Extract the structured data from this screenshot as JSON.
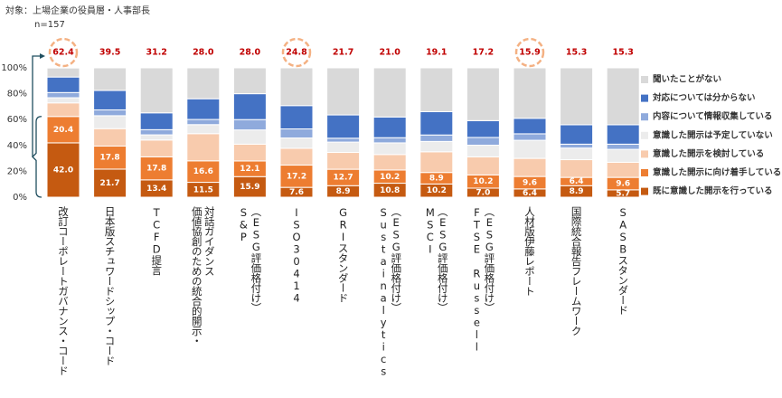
{
  "chart_data": {
    "type": "stacked_bar_percent",
    "subtitle": "対象：上場企業の役員層・人事部長",
    "note": "n=157",
    "categories": [
      [
        "改訂コーポレートガバナンス・コード"
      ],
      [
        "日本版スチュワードシップ・コード"
      ],
      [
        "TCFD提言"
      ],
      [
        "価値協創のための統合的開示・",
        "対話ガイダンス"
      ],
      [
        "S&P",
        "（ESG評価格付け）"
      ],
      [
        "ISO30414"
      ],
      [
        "GRIスタンダード"
      ],
      [
        "Sustainalytics",
        "（ESG評価格付け）"
      ],
      [
        "MSCI",
        "（ESG評価格付け）"
      ],
      [
        "FTSE Russell",
        "（ESG評価格付け）"
      ],
      [
        "人材版伊藤レポート"
      ],
      [
        "国際統合報告フレームワーク"
      ],
      [
        "SASBスタンダード"
      ]
    ],
    "series": [
      {
        "name": "既に意識した開示を行っている",
        "color": "#c55a11",
        "values": [
          42.0,
          21.7,
          13.4,
          11.5,
          15.9,
          7.6,
          8.9,
          10.8,
          10.2,
          7.0,
          6.4,
          8.9,
          5.7
        ],
        "value_labels": [
          "42.0",
          "21.7",
          "13.4",
          "11.5",
          "15.9",
          "7.6",
          "8.9",
          "10.8",
          "10.2",
          "7.0",
          "6.4",
          "8.9",
          "5.7"
        ]
      },
      {
        "name": "意識した開示に向け着手している",
        "color": "#ed7d31",
        "values": [
          20.4,
          17.8,
          17.8,
          16.6,
          12.1,
          17.2,
          12.7,
          10.2,
          8.9,
          10.2,
          9.6,
          6.4,
          9.6
        ],
        "value_labels": [
          "20.4",
          "17.8",
          "17.8",
          "16.6",
          "12.1",
          "17.2",
          "12.7",
          "10.2",
          "8.9",
          "10.2",
          "9.6",
          "6.4",
          "9.6"
        ]
      },
      {
        "name": "意識した開示を検討している",
        "color": "#f8cbad",
        "values": [
          10.5,
          13.5,
          13,
          21,
          13,
          13,
          13,
          12,
          16,
          14,
          14,
          13.7,
          11.7
        ]
      },
      {
        "name": "意識した開示は予定していない",
        "color": "#ececec",
        "values": [
          4,
          10,
          4,
          7,
          11,
          8,
          8,
          9,
          8,
          9,
          14,
          9,
          10
        ]
      },
      {
        "name": "内容について情報収集している",
        "color": "#8faadc",
        "values": [
          4,
          4.5,
          4,
          4,
          8,
          7,
          3,
          4,
          5,
          6,
          5,
          3,
          4
        ]
      },
      {
        "name": "対応については分からない",
        "color": "#4472c4",
        "values": [
          12,
          15,
          13,
          16,
          20,
          18,
          18,
          16,
          18,
          13,
          12,
          15,
          15
        ]
      },
      {
        "name": "聞いたことがない",
        "color": "#d9d9d9",
        "values": [
          7,
          17.5,
          34.8,
          23.9,
          20,
          29.2,
          36.4,
          38,
          33.9,
          40.8,
          39,
          44,
          44
        ]
      }
    ],
    "totals": {
      "values": [
        62.4,
        39.5,
        31.2,
        28.0,
        28.0,
        24.8,
        21.7,
        21.0,
        19.1,
        17.2,
        15.9,
        15.3,
        15.3
      ],
      "value_labels": [
        "62.4",
        "39.5",
        "31.2",
        "28.0",
        "28.0",
        "24.8",
        "21.7",
        "21.0",
        "19.1",
        "17.2",
        "15.9",
        "15.3",
        "15.3"
      ],
      "color": "#c00000",
      "highlight": [
        true,
        false,
        false,
        false,
        false,
        true,
        false,
        false,
        false,
        false,
        true,
        false,
        false
      ],
      "highlight_color": "#f4b183"
    },
    "ylim": [
      0,
      100
    ],
    "yticks": [
      {
        "value": 0,
        "label": "0%"
      },
      {
        "value": 20,
        "label": "20%"
      },
      {
        "value": 40,
        "label": "40%"
      },
      {
        "value": 60,
        "label": "60%"
      },
      {
        "value": 80,
        "label": "80%"
      },
      {
        "value": 100,
        "label": "100%"
      }
    ],
    "labeled_series": [
      0,
      1
    ],
    "legend": "right"
  }
}
